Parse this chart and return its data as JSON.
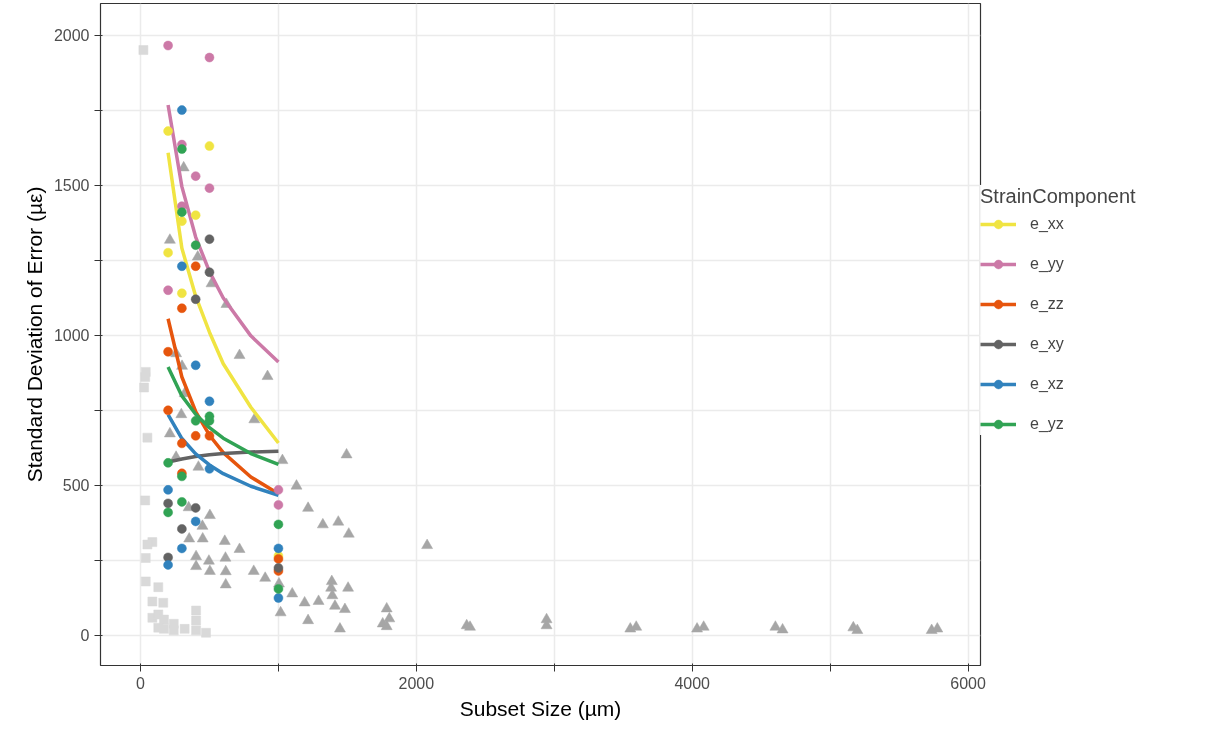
{
  "chart_data": {
    "type": "scatter",
    "xlabel": "Subset Size (µm)",
    "ylabel": "Standard Deviation of Error (µε)",
    "legend_title": "StrainComponent",
    "xlim": [
      -290,
      6090
    ],
    "ylim": [
      -100,
      2105
    ],
    "xticks": [
      0,
      {
        "value": 1000,
        "label": null
      },
      2000,
      {
        "value": 3000,
        "label": null
      },
      4000,
      {
        "value": 5000,
        "label": null
      },
      6000
    ],
    "yticks": [
      0,
      {
        "value": 250,
        "label": null
      },
      500,
      {
        "value": 750,
        "label": null
      },
      1000,
      {
        "value": 1250,
        "label": null
      },
      1500,
      {
        "value": 1750,
        "label": null
      },
      2000
    ],
    "grid": true,
    "legend": "right",
    "series": [
      {
        "marker": "square",
        "color": "#d9d9d9",
        "x": [
          21,
          38,
          34,
          26,
          50,
          34,
          86,
          50,
          38,
          38,
          129,
          86,
          165,
          86,
          129,
          170,
          129,
          241,
          241,
          320,
          403,
          403,
          403,
          475,
          170
        ],
        "values": [
          1950,
          878,
          861,
          826,
          659,
          450,
          311,
          303,
          258,
          180,
          161,
          113,
          109,
          59,
          70,
          53,
          26,
          39,
          17,
          22,
          83,
          50,
          17,
          9,
          22
        ]
      },
      {
        "marker": "triangle",
        "color": "#a6a6a6",
        "x": [
          313,
          213,
          415,
          515,
          623,
          258,
          301,
          718,
          921,
          320,
          296,
          825,
          213,
          258,
          420,
          1029,
          1131,
          349,
          503,
          449,
          353,
          451,
          611,
          718,
          403,
          616,
          496,
          403,
          503,
          618,
          821,
          904,
          1004,
          618,
          1100,
          1016,
          1494,
          1215,
          1322,
          1434,
          1510,
          2078,
          1190,
          1291,
          1387,
          1382,
          1391,
          1505,
          1410,
          1482,
          1215,
          1446,
          1785,
          1804,
          1756,
          1785,
          2365,
          2389,
          2944,
          2944,
          3551,
          3594,
          4035,
          4083,
          4603,
          4655,
          5168,
          5197,
          5736,
          5777
        ],
        "values": [
          1558,
          1317,
          1261,
          1172,
          1103,
          939,
          897,
          933,
          863,
          806,
          736,
          719,
          672,
          594,
          561,
          583,
          498,
          426,
          400,
          364,
          322,
          322,
          314,
          287,
          263,
          258,
          248,
          230,
          214,
          213,
          214,
          191,
          172,
          169,
          139,
          76,
          602,
          424,
          369,
          378,
          338,
          300,
          109,
          114,
          180,
          158,
          133,
          158,
          98,
          87,
          50,
          22,
          89,
          56,
          39,
          30,
          33,
          28,
          53,
          33,
          22,
          28,
          22,
          28,
          28,
          19,
          26,
          17,
          17,
          22
        ]
      },
      {
        "type": "line",
        "name": "e_xx",
        "color": "#f0e442",
        "x": [
          200,
          300,
          400,
          500,
          600,
          800,
          1000
        ],
        "values": [
          1608,
          1290,
          1130,
          1010,
          905,
          760,
          641
        ]
      },
      {
        "type": "line",
        "name": "e_yy",
        "color": "#cc79a7",
        "x": [
          200,
          300,
          400,
          500,
          600,
          800,
          1000
        ],
        "values": [
          1767,
          1495,
          1327,
          1212,
          1124,
          998,
          911
        ]
      },
      {
        "type": "line",
        "name": "e_zz",
        "color": "#e6550d",
        "x": [
          200,
          300,
          400,
          500,
          600,
          800,
          1000
        ],
        "values": [
          1055,
          861,
          746,
          667,
          609,
          528,
          472
        ]
      },
      {
        "type": "line",
        "name": "e_xy",
        "color": "#636363",
        "x": [
          200,
          300,
          400,
          500,
          600,
          800,
          1000
        ],
        "values": [
          578,
          588,
          596,
          602,
          606,
          611,
          614
        ]
      },
      {
        "type": "line",
        "name": "e_xz",
        "color": "#3182bd",
        "x": [
          200,
          300,
          400,
          500,
          600,
          800,
          1000
        ],
        "values": [
          736,
          656,
          605,
          568,
          539,
          497,
          467
        ]
      },
      {
        "type": "line",
        "name": "e_yz",
        "color": "#31a354",
        "x": [
          200,
          300,
          400,
          500,
          600,
          800,
          1000
        ],
        "values": [
          894,
          798,
          737,
          692,
          657,
          606,
          570
        ]
      },
      {
        "marker": "circle",
        "color": "#f0e442",
        "x": [
          200,
          500,
          400,
          300,
          200,
          300,
          1000
        ],
        "values": [
          1680,
          1630,
          1400,
          1380,
          1275,
          1140,
          265
        ]
      },
      {
        "marker": "circle",
        "color": "#cc79a7",
        "x": [
          200,
          500,
          300,
          400,
          500,
          300,
          200,
          1000,
          1000
        ],
        "values": [
          1965,
          1925,
          1635,
          1530,
          1490,
          1430,
          1150,
          485,
          435
        ]
      },
      {
        "marker": "circle",
        "color": "#e6550d",
        "x": [
          400,
          300,
          200,
          200,
          400,
          500,
          300,
          300,
          1000,
          1000
        ],
        "values": [
          1230,
          1090,
          945,
          750,
          665,
          665,
          640,
          540,
          255,
          215
        ]
      },
      {
        "marker": "circle",
        "color": "#636363",
        "x": [
          500,
          500,
          400,
          200,
          400,
          300,
          200,
          1000
        ],
        "values": [
          1320,
          1210,
          1120,
          440,
          425,
          355,
          260,
          225
        ]
      },
      {
        "marker": "circle",
        "color": "#3182bd",
        "x": [
          300,
          300,
          400,
          500,
          500,
          200,
          400,
          1000,
          300,
          200,
          1000
        ],
        "values": [
          1750,
          1230,
          900,
          780,
          555,
          485,
          380,
          290,
          290,
          235,
          125
        ]
      },
      {
        "marker": "circle",
        "color": "#31a354",
        "x": [
          300,
          300,
          400,
          400,
          500,
          500,
          200,
          300,
          300,
          200,
          1000,
          1000
        ],
        "values": [
          1620,
          1410,
          1300,
          715,
          730,
          715,
          575,
          530,
          445,
          410,
          370,
          155
        ]
      }
    ]
  }
}
